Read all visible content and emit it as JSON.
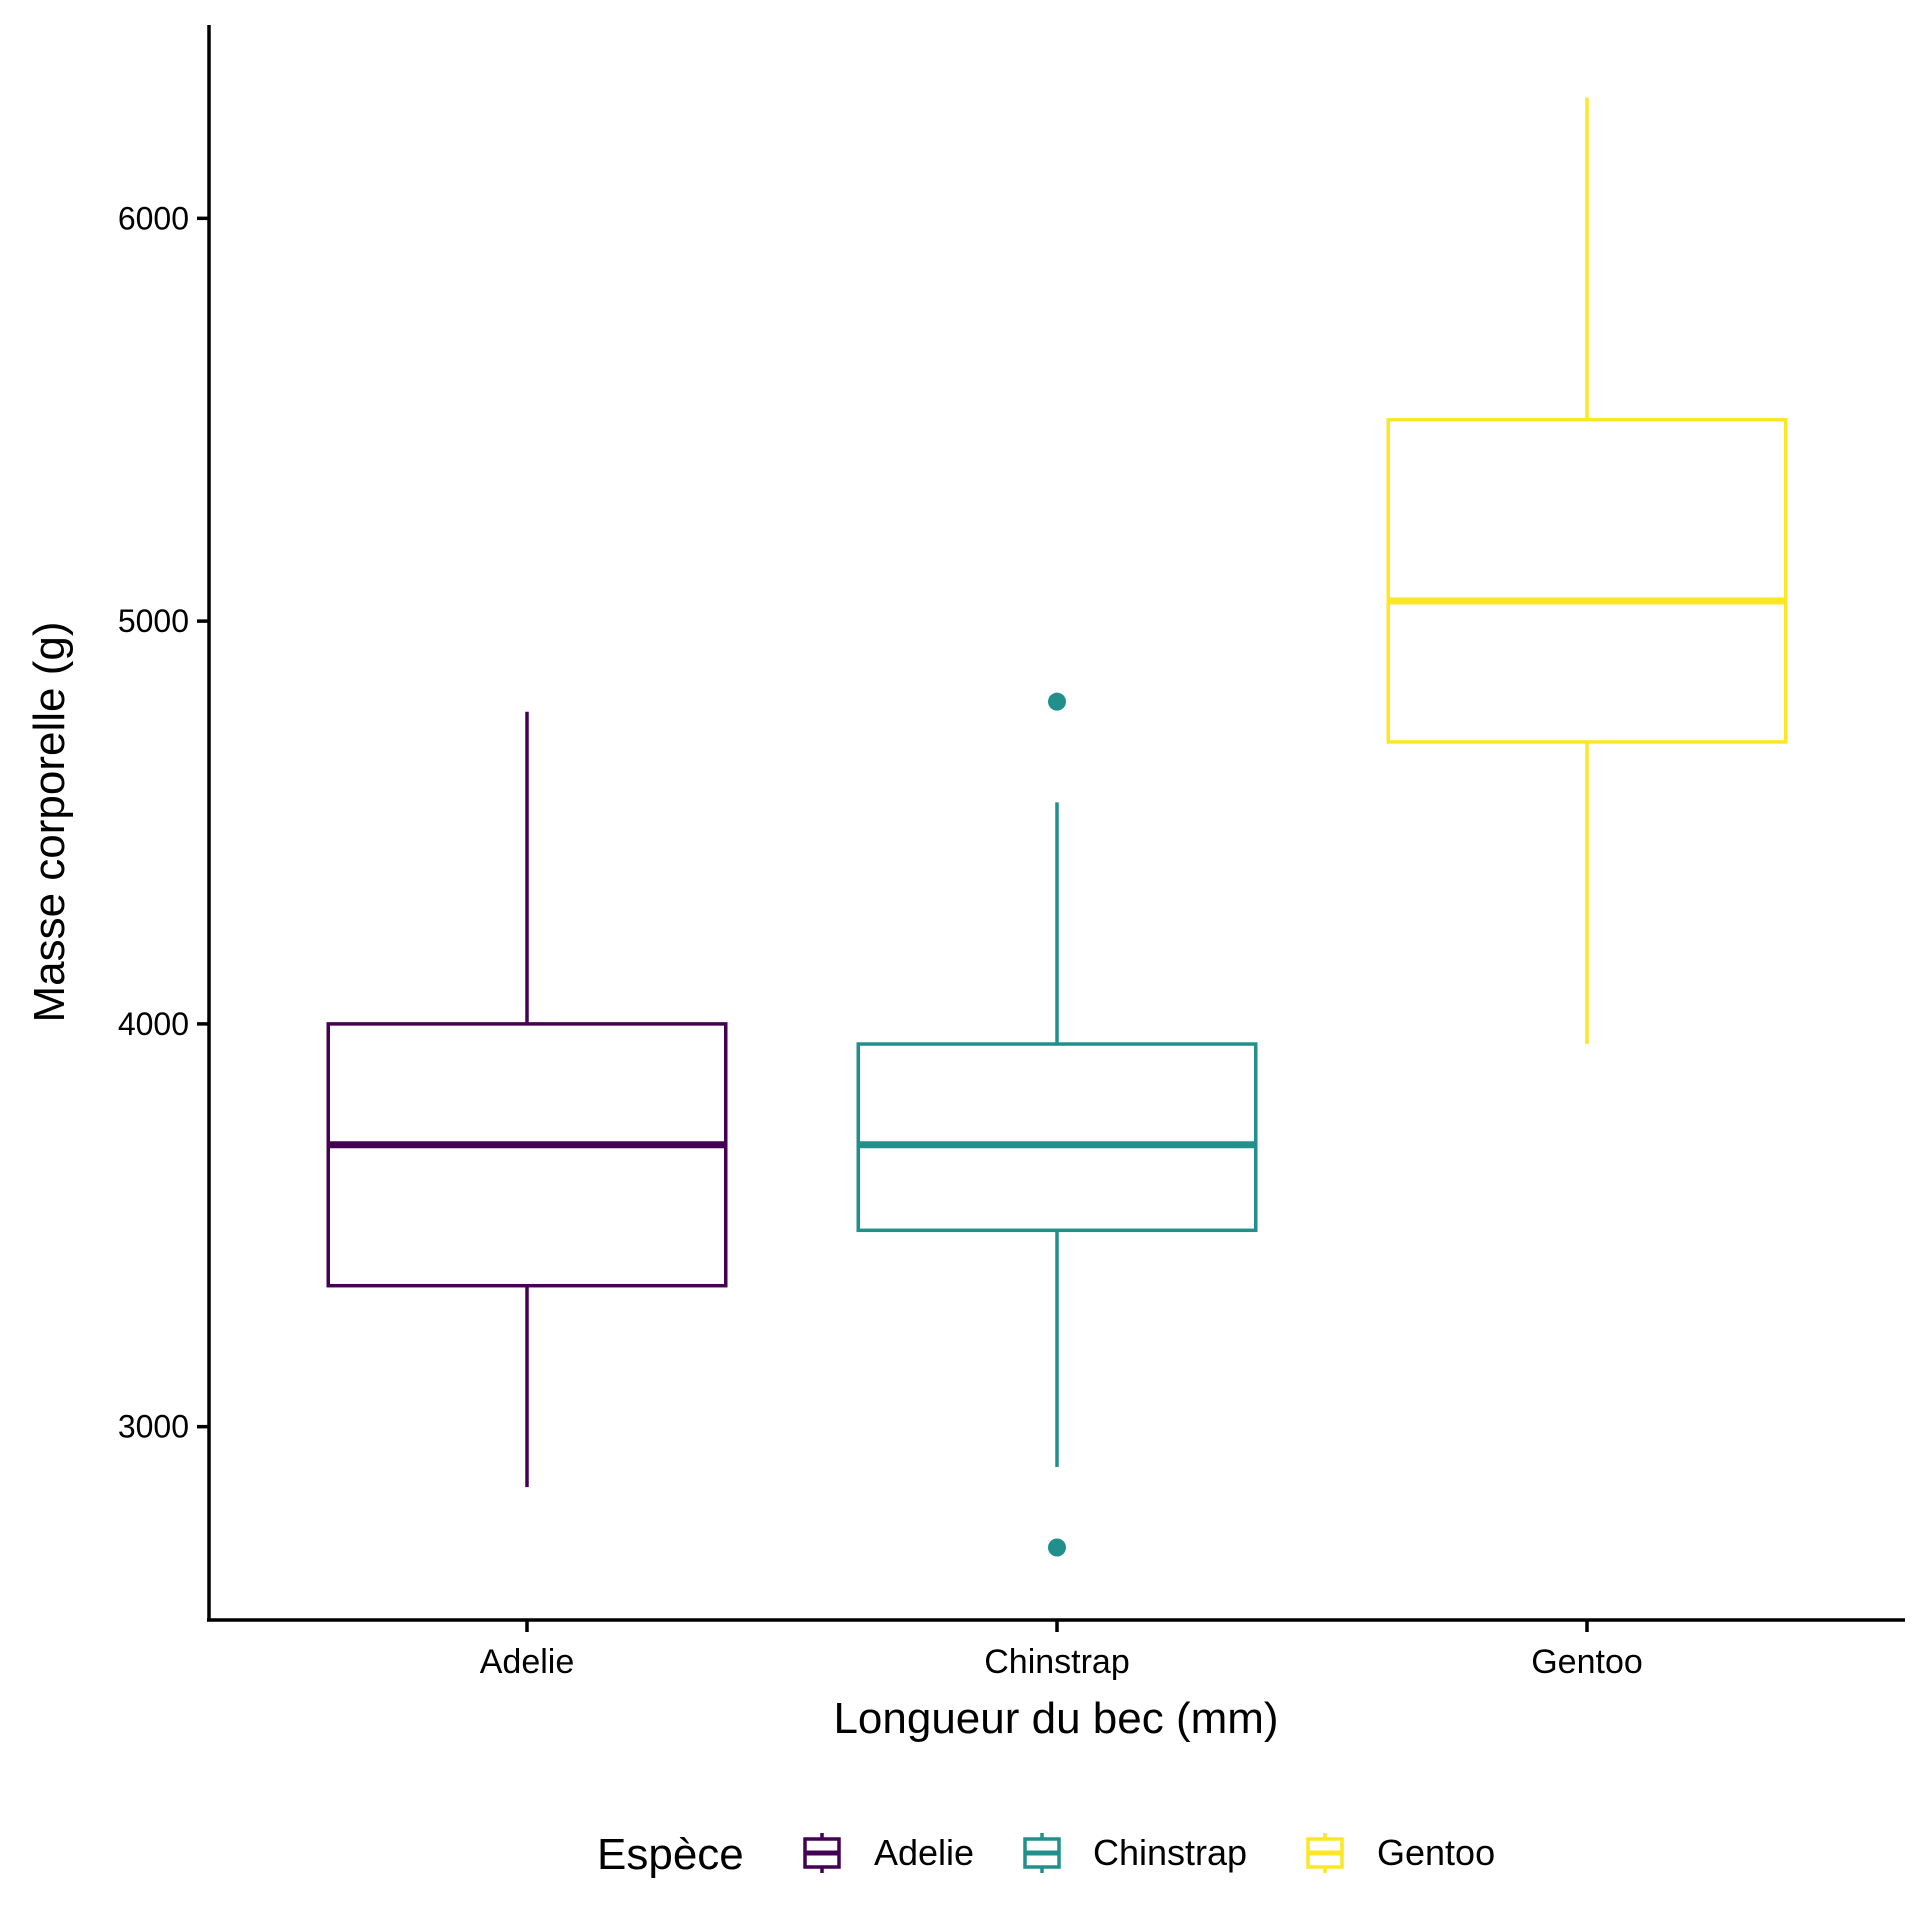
{
  "chart_data": {
    "type": "boxplot",
    "title": "",
    "xlabel": "Longueur du bec (mm)",
    "ylabel": "Masse corporelle (g)",
    "categories": [
      "Adelie",
      "Chinstrap",
      "Gentoo"
    ],
    "ylim": [
      2520,
      6480
    ],
    "yticks": [
      3000,
      4000,
      5000,
      6000
    ],
    "grid": false,
    "series": [
      {
        "name": "Adelie",
        "color": "#440154",
        "whisker_low": 2850,
        "q1": 3350,
        "median": 3700,
        "q3": 4000,
        "whisker_high": 4775,
        "outliers": []
      },
      {
        "name": "Chinstrap",
        "color": "#21908C",
        "whisker_low": 2900,
        "q1": 3487.5,
        "median": 3700,
        "q3": 3950,
        "whisker_high": 4550,
        "outliers": [
          4800,
          2700
        ]
      },
      {
        "name": "Gentoo",
        "color": "#FDE725",
        "whisker_low": 3950,
        "q1": 4700,
        "median": 5050,
        "q3": 5500,
        "whisker_high": 6300,
        "outliers": []
      }
    ],
    "legend": {
      "title": "Espèce",
      "position": "bottom",
      "entries": [
        "Adelie",
        "Chinstrap",
        "Gentoo"
      ]
    }
  }
}
